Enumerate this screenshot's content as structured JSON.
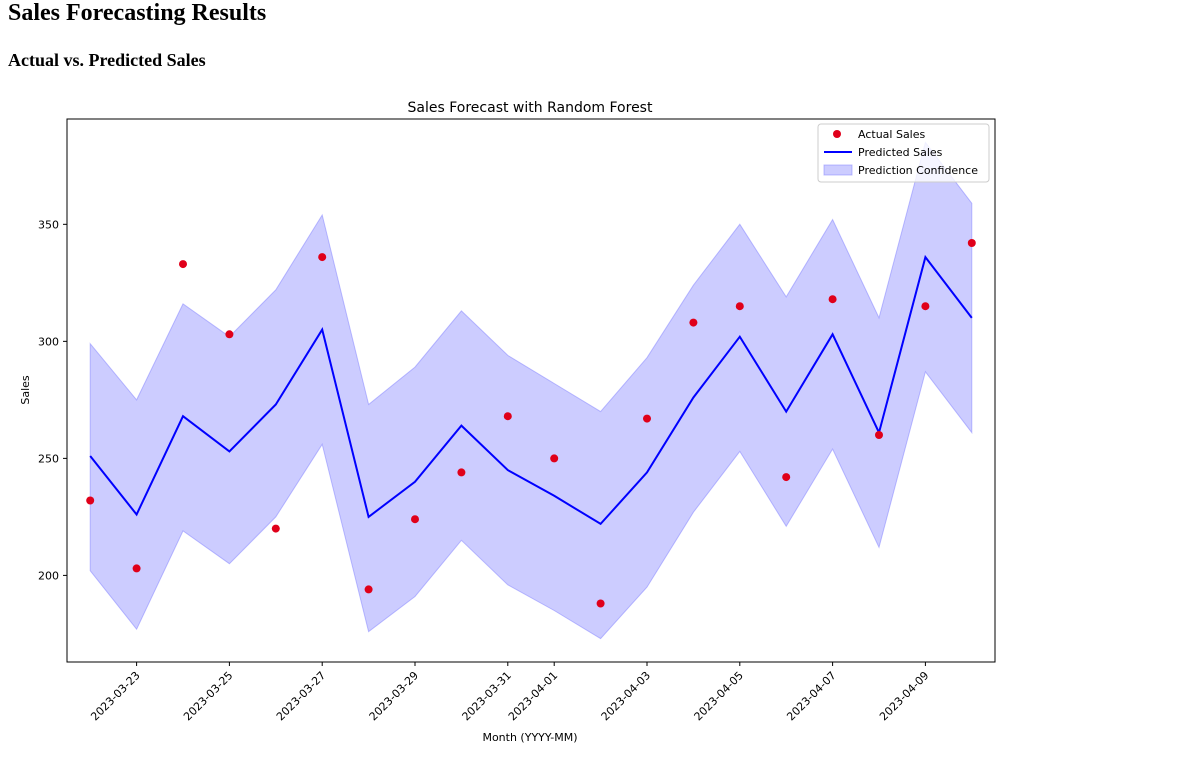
{
  "page": {
    "title": "Sales Forecasting Results",
    "subtitle": "Actual vs. Predicted Sales"
  },
  "chart_data": {
    "type": "line",
    "title": "Sales Forecast with Random Forest",
    "xlabel": "Month (YYYY-MM)",
    "ylabel": "Sales",
    "x": [
      "2023-03-22",
      "2023-03-23",
      "2023-03-24",
      "2023-03-25",
      "2023-03-26",
      "2023-03-27",
      "2023-03-28",
      "2023-03-29",
      "2023-03-30",
      "2023-03-31",
      "2023-04-01",
      "2023-04-02",
      "2023-04-03",
      "2023-04-04",
      "2023-04-05",
      "2023-04-06",
      "2023-04-07",
      "2023-04-08",
      "2023-04-09",
      "2023-04-10"
    ],
    "xlim": [
      "2023-03-21T12:00",
      "2023-04-10T12:00"
    ],
    "xticks": [
      "2023-03-23",
      "2023-03-25",
      "2023-03-27",
      "2023-03-29",
      "2023-03-31",
      "2023-04-01",
      "2023-04-03",
      "2023-04-05",
      "2023-04-07",
      "2023-04-09"
    ],
    "ylim": [
      163,
      395
    ],
    "yticks": [
      200,
      250,
      300,
      350
    ],
    "grid": false,
    "legend_position": "top-right",
    "series": [
      {
        "name": "Actual Sales",
        "kind": "scatter",
        "color": "#e0001a",
        "values": [
          232,
          203,
          333,
          303,
          220,
          336,
          194,
          224,
          244,
          268,
          250,
          188,
          267,
          308,
          315,
          242,
          318,
          260,
          315,
          342
        ]
      },
      {
        "name": "Predicted Sales",
        "kind": "line",
        "color": "#0000ff",
        "values": [
          251,
          226,
          268,
          253,
          273,
          305,
          225,
          240,
          264,
          245,
          234,
          222,
          244,
          276,
          302,
          270,
          303,
          261,
          336,
          310
        ]
      },
      {
        "name": "Prediction Confidence",
        "kind": "band",
        "color": "#8080ff",
        "lower": [
          202,
          177,
          219,
          205,
          225,
          256,
          176,
          191,
          215,
          196,
          185,
          173,
          195,
          227,
          253,
          221,
          254,
          212,
          287,
          261
        ],
        "upper": [
          299,
          275,
          316,
          302,
          322,
          354,
          273,
          289,
          313,
          294,
          282,
          270,
          293,
          324,
          350,
          319,
          352,
          310,
          385,
          359
        ]
      }
    ]
  }
}
